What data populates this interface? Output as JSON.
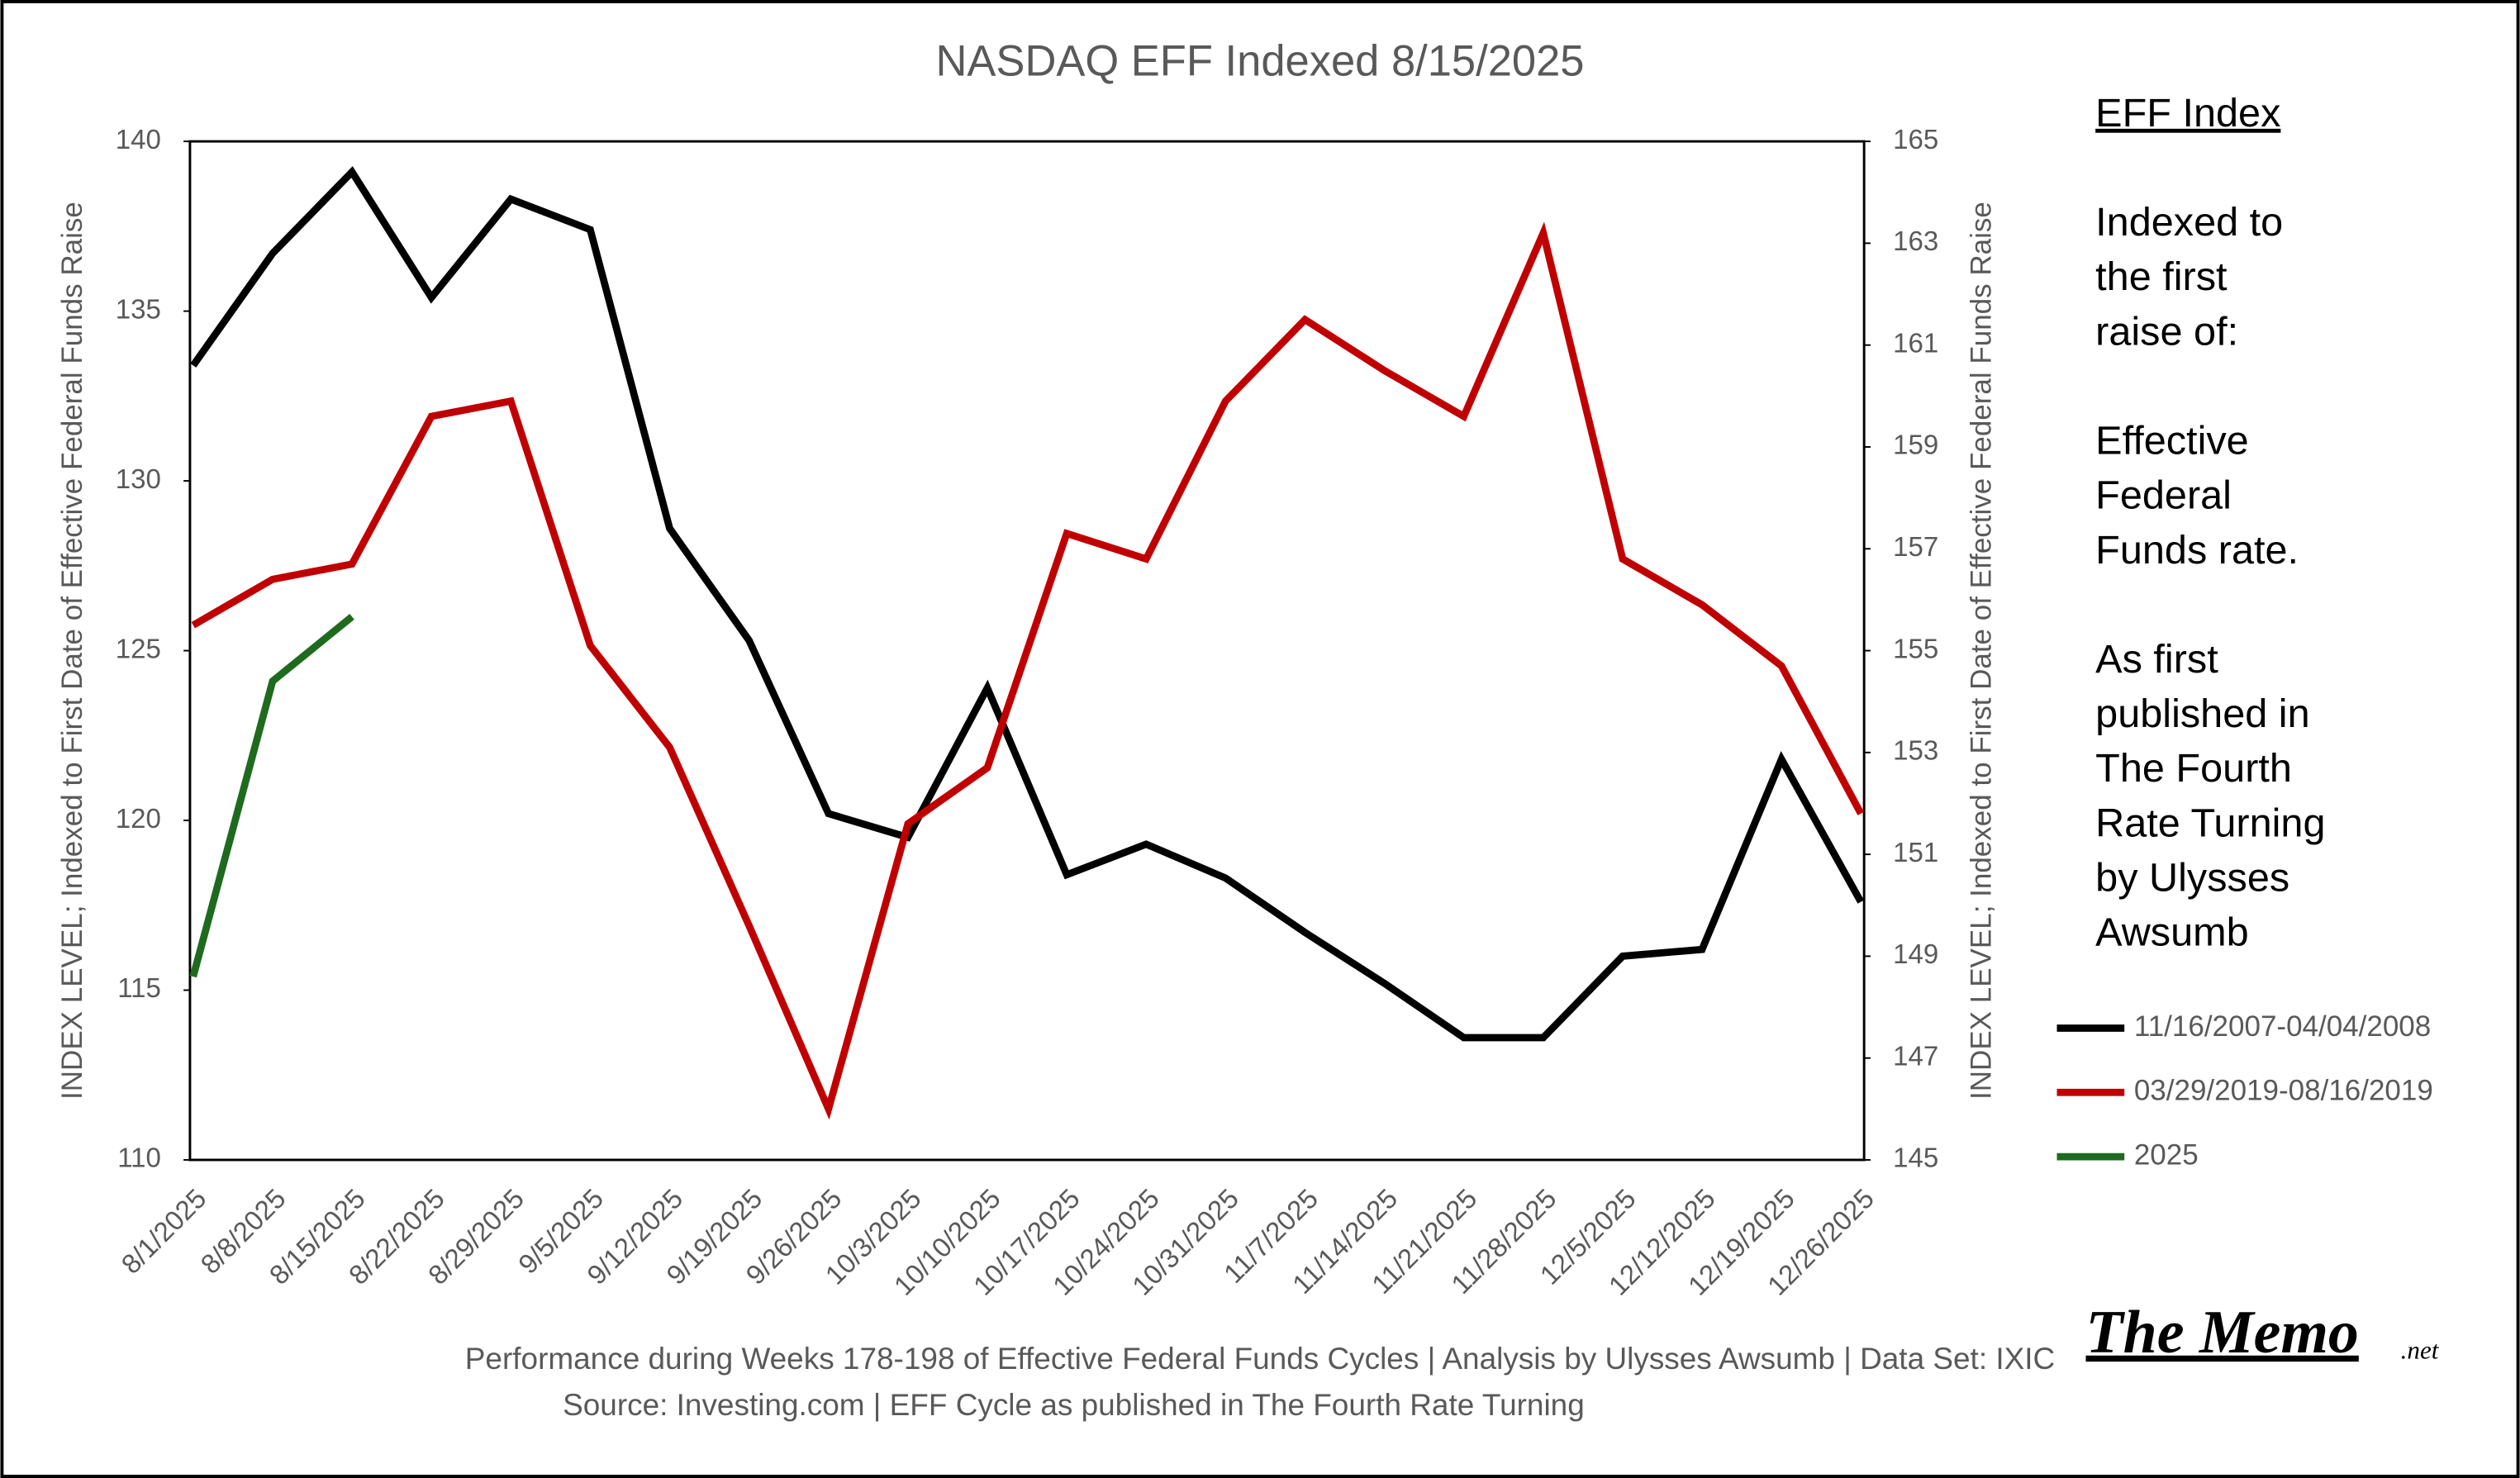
{
  "chart_data": {
    "type": "line",
    "title": "NASDAQ EFF Indexed 8/15/2025",
    "y_label": "INDEX LEVEL; Indexed to First Date of Effective Federal Funds Raise",
    "y2_label": "INDEX LEVEL; Indexed to First Date of Effective Federal Funds Raise",
    "categories": [
      "8/1/2025",
      "8/8/2025",
      "8/15/2025",
      "8/22/2025",
      "8/29/2025",
      "9/5/2025",
      "9/12/2025",
      "9/19/2025",
      "9/26/2025",
      "10/3/2025",
      "10/10/2025",
      "10/17/2025",
      "10/24/2025",
      "10/31/2025",
      "11/7/2025",
      "11/14/2025",
      "11/21/2025",
      "11/28/2025",
      "12/5/2025",
      "12/12/2025",
      "12/19/2025",
      "12/26/2025"
    ],
    "series": [
      {
        "name": "11/16/2007-04/04/2008",
        "color": "#000000",
        "axis": "y",
        "values": [
          133.4,
          136.7,
          139.1,
          135.4,
          138.3,
          137.4,
          128.6,
          125.3,
          120.2,
          119.5,
          123.9,
          118.4,
          119.3,
          118.3,
          116.7,
          115.2,
          113.6,
          113.6,
          116.0,
          116.2,
          121.8,
          117.6
        ]
      },
      {
        "name": "03/29/2019-08/16/2019",
        "color": "#c00000",
        "axis": "y2",
        "values": [
          155.5,
          156.4,
          156.7,
          159.6,
          159.9,
          155.1,
          153.1,
          149.6,
          146.0,
          151.6,
          152.7,
          157.3,
          156.8,
          159.9,
          161.5,
          160.5,
          159.6,
          163.2,
          156.8,
          155.9,
          154.7,
          151.8
        ]
      },
      {
        "name": "2025",
        "color": "#1e6b1e",
        "axis": "y",
        "values": [
          115.4,
          124.1,
          126.0,
          null,
          null,
          null,
          null,
          null,
          null,
          null,
          null,
          null,
          null,
          null,
          null,
          null,
          null,
          null,
          null,
          null,
          null,
          null
        ]
      }
    ],
    "ylim": [
      110,
      140
    ],
    "yticks": [
      110,
      115,
      120,
      125,
      130,
      135,
      140
    ],
    "y2lim": [
      145,
      165
    ],
    "y2ticks": [
      145,
      147,
      149,
      151,
      153,
      155,
      157,
      159,
      161,
      163,
      165
    ],
    "legend": "right",
    "side_heading": "EFF Index",
    "side_text": [
      "Indexed to",
      "the first",
      "raise of:",
      "",
      "Effective",
      "Federal",
      "Funds rate.",
      "",
      "As first",
      "published in",
      "The Fourth",
      "Rate Turning",
      "by Ulysses",
      "Awsumb"
    ],
    "footer": [
      "Performance during Weeks 178-198 of Effective Federal Funds Cycles  |  Analysis  by Ulysses Awsumb  |  Data Set: IXIC",
      "Source: Investing.com  |  EFF Cycle as published in The Fourth Rate Turning"
    ],
    "logo": "The Memo",
    "logo_suffix": ".net"
  }
}
